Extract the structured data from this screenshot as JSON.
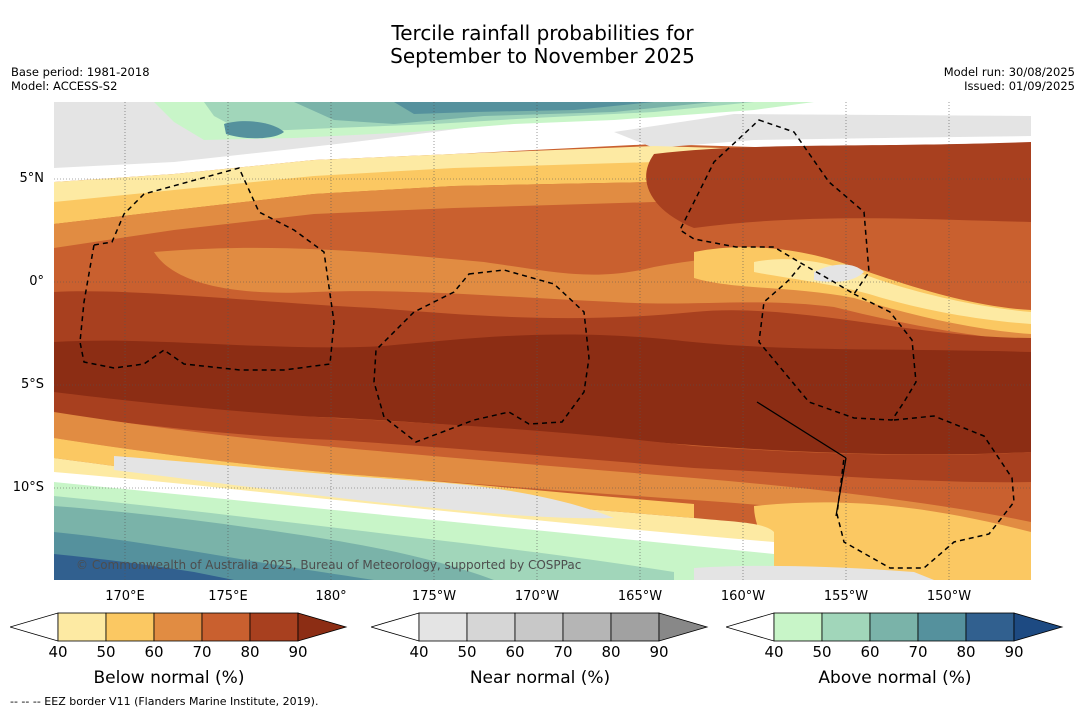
{
  "title": "Tercile rainfall probabilities for\nSeptember to November 2025",
  "meta_left": "Base period: 1981-2018\nModel: ACCESS-S2",
  "meta_right": "Model run: 30/08/2025\nIssued: 01/09/2025",
  "lat_labels": [
    "5°N",
    "0°",
    "5°S",
    "10°S"
  ],
  "lon_labels": [
    "170°E",
    "175°E",
    "180°",
    "175°W",
    "170°W",
    "165°W",
    "160°W",
    "155°W",
    "150°W"
  ],
  "copyright": "© Commonwealth of Australia 2025, Bureau of Meteorology, supported by COSPPac",
  "eez_note": "-- -- -- EEZ border V11 (Flanders Marine Institute, 2019).",
  "colorbars": [
    {
      "title": "Below normal (%)",
      "ticks": [
        "40",
        "50",
        "60",
        "70",
        "80",
        "90"
      ],
      "colors": [
        "#ffffff",
        "#fdeaa3",
        "#fbc862",
        "#e18c42",
        "#c9602f",
        "#a8401f",
        "#8c2d14"
      ]
    },
    {
      "title": "Near normal (%)",
      "ticks": [
        "40",
        "50",
        "60",
        "70",
        "80",
        "90"
      ],
      "colors": [
        "#ffffff",
        "#e4e4e4",
        "#d6d6d6",
        "#c8c8c8",
        "#b5b5b5",
        "#a1a1a1",
        "#888888"
      ]
    },
    {
      "title": "Above normal (%)",
      "ticks": [
        "40",
        "50",
        "60",
        "70",
        "80",
        "90"
      ],
      "colors": [
        "#ffffff",
        "#c8f5c8",
        "#a1d6ba",
        "#7ab3a9",
        "#55919d",
        "#31608f",
        "#1d4a82"
      ]
    }
  ]
}
